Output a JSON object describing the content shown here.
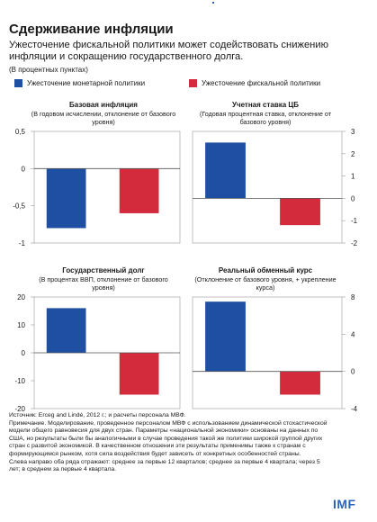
{
  "header": {
    "title": "Сдерживание инфляции",
    "subtitle": "Ужесточение фискальной политики может содействовать снижению инфляции и сокращению государственного долга.",
    "units": "(В процентных пунктах)"
  },
  "legend": [
    {
      "label": "Ужесточение монетарной политики",
      "color": "#1f4fa3"
    },
    {
      "label": "Ужесточение фискальной политики",
      "color": "#d32b3b"
    }
  ],
  "colors": {
    "monetary": "#1f4fa3",
    "fiscal": "#d32b3b",
    "axis": "#9a9a9a"
  },
  "chart_data": [
    {
      "type": "bar",
      "title": "Базовая инфляция",
      "subtitle": "(В годовом исчислении, отклонение от базового уровня)",
      "categories": [
        "Ужесточение монетарной политики",
        "Ужесточение фискальной политики"
      ],
      "values": [
        -0.8,
        -0.6
      ],
      "ylim": [
        -1,
        0.5
      ],
      "yticks": [
        0.5,
        0,
        -0.5,
        -1
      ],
      "ytick_labels": [
        "0,5",
        "0",
        "-0,5",
        "-1"
      ],
      "axis_side": "left"
    },
    {
      "type": "bar",
      "title": "Учетная ставка ЦБ",
      "subtitle": "(Годовая процентная ставка, отклонение от базового уровня)",
      "categories": [
        "Ужесточение монетарной политики",
        "Ужесточение фискальной политики"
      ],
      "values": [
        2.5,
        -1.2
      ],
      "ylim": [
        -2,
        3
      ],
      "yticks": [
        3,
        2,
        1,
        0,
        -1,
        -2
      ],
      "ytick_labels": [
        "3",
        "2",
        "1",
        "0",
        "-1",
        "-2"
      ],
      "axis_side": "right"
    },
    {
      "type": "bar",
      "title": "Государственный долг",
      "subtitle": "(В процентах ВВП, отклонение от базового уровня)",
      "categories": [
        "Ужесточение монетарной политики",
        "Ужесточение фискальной политики"
      ],
      "values": [
        16,
        -15
      ],
      "ylim": [
        -20,
        20
      ],
      "yticks": [
        20,
        10,
        0,
        -10,
        -20
      ],
      "ytick_labels": [
        "20",
        "10",
        "0",
        "-10",
        "-20"
      ],
      "axis_side": "left"
    },
    {
      "type": "bar",
      "title": "Реальный обменный курс",
      "subtitle": "(Отклонение от базового уровня, + укрепление курса)",
      "categories": [
        "Ужесточение монетарной политики",
        "Ужесточение фискальной политики"
      ],
      "values": [
        7.5,
        -2.5
      ],
      "ylim": [
        -4,
        8
      ],
      "yticks": [
        8,
        4,
        0,
        -4
      ],
      "ytick_labels": [
        "8",
        "4",
        "0",
        "-4"
      ],
      "axis_side": "right"
    }
  ],
  "notes": [
    "Источник: Erceg and Lindé, 2012 г.; и расчеты персонала МВФ.",
    "Примечание. Моделирование, проведенное персоналом МВФ с использованием динамической стохастической модели общего равновесия для двух стран. Параметры «национальной экономики» основаны на данных по США, но результаты были бы аналогичными в случае проведения такой же политики широкой группой других стран с развитой экономикой. В качественном отношении эти результаты применимы также к странам с формирующимся рынком, хотя сила воздействия будет зависеть от конкретных особенностей страны.",
    "Слева направо оба ряда отражают: среднее за первые 12 кварталов; среднее за первые 4 квартала; через 5 лет; в среднем за первые 4 квартала."
  ],
  "logo": "IMF"
}
